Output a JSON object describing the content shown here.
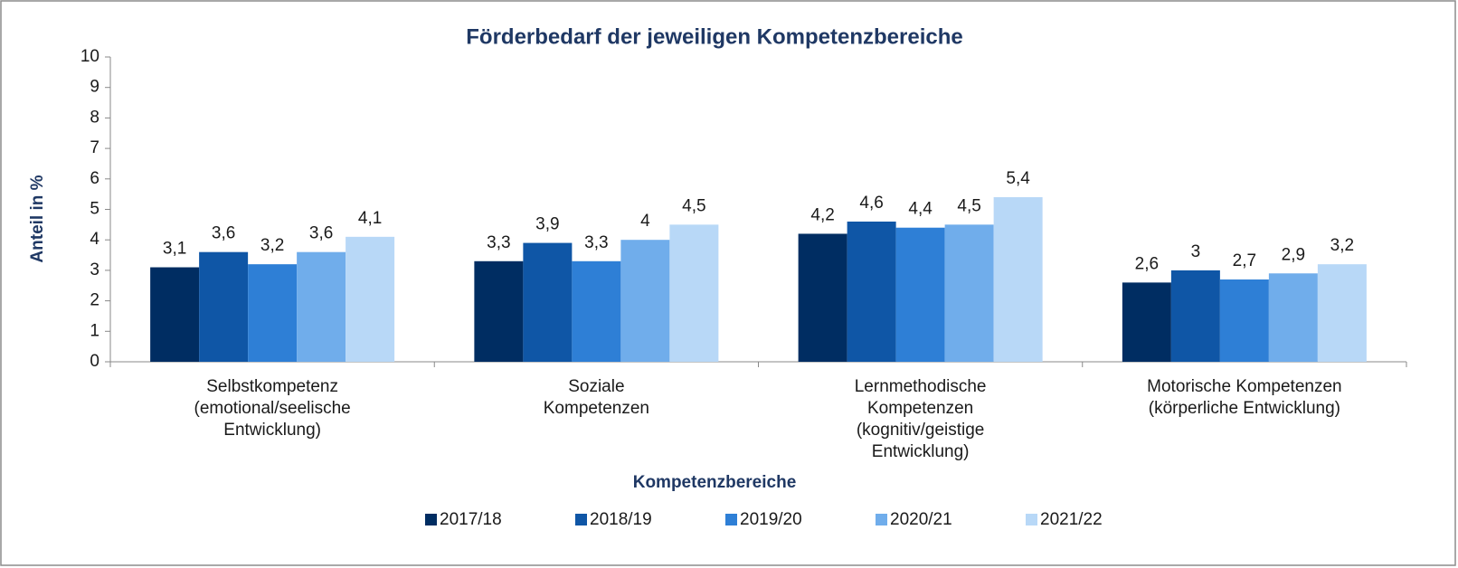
{
  "chart_data": {
    "type": "bar",
    "title": "Förderbedarf der jeweiligen Kompetenzbereiche",
    "x_label": "Kompetenzbereiche",
    "y_label": "Anteil in %",
    "categories": [
      "Selbstkompetenz\n(emotional/seelische\nEntwicklung)",
      "Soziale\nKompetenzen",
      "Lernmethodische\nKompetenzen\n(kognitiv/geistige\nEntwicklung)",
      "Motorische Kompetenzen\n(körperliche Entwicklung)"
    ],
    "series": [
      {
        "name": "2017/18",
        "color": "#002d62",
        "values": [
          3.1,
          3.3,
          4.2,
          2.6
        ],
        "value_labels": [
          "3,1",
          "3,3",
          "4,2",
          "2,6"
        ]
      },
      {
        "name": "2018/19",
        "color": "#0f56a6",
        "values": [
          3.6,
          3.9,
          4.6,
          3
        ],
        "value_labels": [
          "3,6",
          "3,9",
          "4,6",
          "3"
        ]
      },
      {
        "name": "2019/20",
        "color": "#2e7fd6",
        "values": [
          3.2,
          3.3,
          4.4,
          2.7
        ],
        "value_labels": [
          "3,2",
          "3,3",
          "4,4",
          "2,7"
        ]
      },
      {
        "name": "2020/21",
        "color": "#70adeb",
        "values": [
          3.6,
          4,
          4.5,
          2.9
        ],
        "value_labels": [
          "3,6",
          "4",
          "4,5",
          "2,9"
        ]
      },
      {
        "name": "2021/22",
        "color": "#b8d8f7",
        "values": [
          4.1,
          4.5,
          5.4,
          3.2
        ],
        "value_labels": [
          "4,1",
          "4,5",
          "5,4",
          "3,2"
        ]
      }
    ],
    "ylim": [
      0,
      10
    ],
    "yticks": [
      0,
      1,
      2,
      3,
      4,
      5,
      6,
      7,
      8,
      9,
      10
    ],
    "grid": false,
    "legend": "bottom"
  }
}
